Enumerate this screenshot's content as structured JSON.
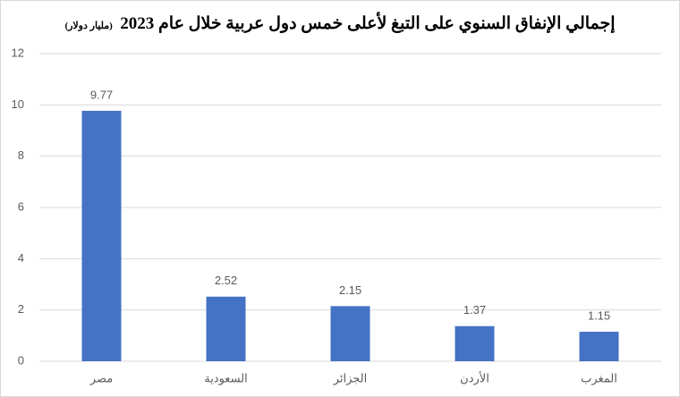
{
  "chart_data": {
    "type": "bar",
    "title": "إجمالي الإنفاق السنوي على التبغ لأعلى خمس دول عربية خلال عام 2023",
    "subtitle": "(مليار دولار)",
    "categories": [
      "مصر",
      "السعودية",
      "الجزائر",
      "الأردن",
      "المغرب"
    ],
    "values": [
      9.77,
      2.52,
      2.15,
      1.37,
      1.15
    ],
    "color": "#4472c4",
    "ylim": [
      0,
      12
    ],
    "yticks": [
      0,
      2,
      4,
      6,
      8,
      10,
      12
    ],
    "grid": true,
    "data_labels": true
  }
}
